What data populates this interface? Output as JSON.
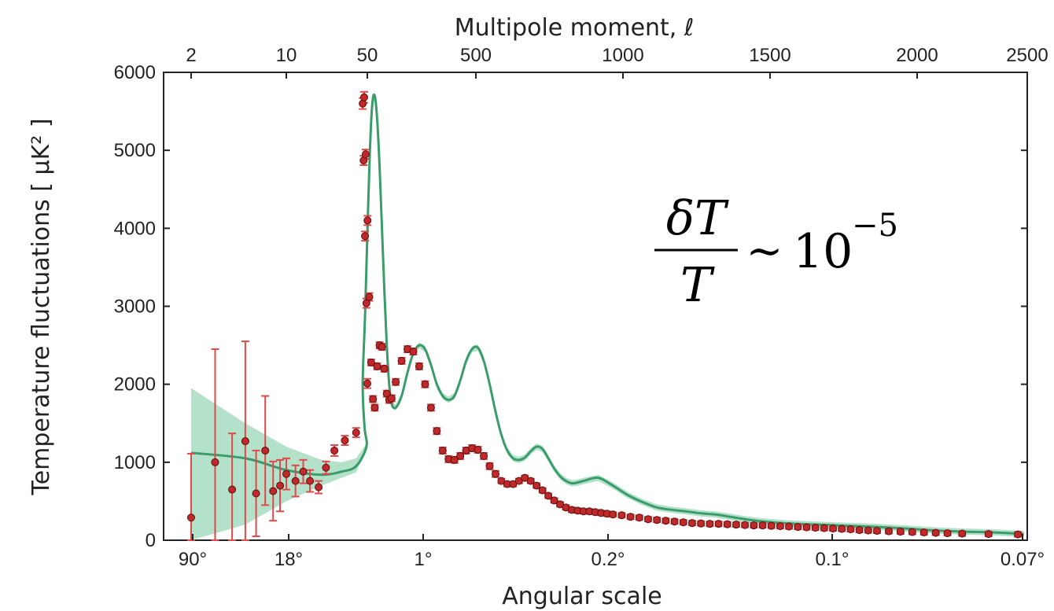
{
  "chart_data": {
    "type": "scatter",
    "title": "",
    "top_axis_label": "Multipole moment, ℓ",
    "top_ticks": [
      "2",
      "10",
      "50",
      "500",
      "1000",
      "1500",
      "2000",
      "2500"
    ],
    "xlabel": "Angular scale",
    "x_ticks": [
      "90°",
      "18°",
      "1°",
      "0.2°",
      "0.1°",
      "0.07°"
    ],
    "ylabel": "Temperature fluctuations [ μK² ]",
    "ylim": [
      0,
      6000
    ],
    "y_ticks": [
      0,
      1000,
      2000,
      3000,
      4000,
      5000,
      6000
    ],
    "grid": false,
    "annotation": {
      "numerator": "δT",
      "denominator": "T",
      "relation": "∼",
      "base": "10",
      "exponent": "−5"
    },
    "model_curve": {
      "color": "#3a9c6a",
      "band_color": "#a6dcc0",
      "multipoles": [
        2,
        5,
        10,
        20,
        30,
        40,
        60,
        80,
        100,
        120,
        140,
        160,
        180,
        200,
        220,
        240,
        260,
        280,
        300,
        320,
        340,
        360,
        380,
        400,
        420,
        440,
        460,
        480,
        500,
        520,
        540,
        560,
        580,
        600,
        620,
        640,
        660,
        680,
        700,
        720,
        740,
        760,
        780,
        800,
        820,
        840,
        860,
        880,
        900,
        920,
        940,
        960,
        980,
        1000,
        1050,
        1100,
        1150,
        1200,
        1250,
        1300,
        1350,
        1400,
        1450,
        1500,
        1550,
        1600,
        1700,
        1800,
        1900,
        2000,
        2100,
        2200,
        2300,
        2400,
        2500
      ],
      "values": [
        1120,
        1050,
        900,
        840,
        880,
        950,
        1200,
        1450,
        2000,
        2900,
        4000,
        5000,
        5600,
        5700,
        5400,
        4800,
        4000,
        3200,
        2500,
        2000,
        1750,
        1700,
        1850,
        2150,
        2400,
        2500,
        2450,
        2250,
        2000,
        1850,
        1800,
        1850,
        2050,
        2300,
        2450,
        2470,
        2300,
        2000,
        1650,
        1350,
        1150,
        1050,
        1030,
        1060,
        1140,
        1200,
        1170,
        1050,
        920,
        820,
        760,
        730,
        740,
        760,
        800,
        700,
        580,
        490,
        420,
        390,
        370,
        345,
        330,
        300,
        270,
        245,
        215,
        200,
        185,
        170,
        150,
        125,
        110,
        100,
        80
      ],
      "band_lower": [
        0,
        200,
        500,
        700,
        800,
        870
      ],
      "band_upper": [
        1950,
        1500,
        1200,
        1030,
        1000,
        1050
      ]
    },
    "series": [
      {
        "name": "",
        "color": "#c0282a",
        "multipoles": [
          2,
          3,
          4,
          5,
          6,
          7,
          8,
          9,
          10,
          12,
          14,
          16,
          19,
          22,
          26,
          32,
          40,
          50,
          60,
          75,
          90,
          100,
          112,
          125,
          140,
          155,
          170,
          185,
          200,
          220,
          240,
          260,
          280,
          300,
          320,
          340,
          360,
          380,
          400,
          420,
          440,
          460,
          480,
          500,
          520,
          540,
          560,
          580,
          600,
          620,
          640,
          660,
          680,
          700,
          720,
          740,
          760,
          780,
          800,
          820,
          840,
          860,
          880,
          900,
          920,
          940,
          960,
          980,
          1000,
          1020,
          1040,
          1060,
          1080,
          1100,
          1130,
          1160,
          1190,
          1220,
          1250,
          1280,
          1310,
          1340,
          1370,
          1400,
          1430,
          1460,
          1490,
          1520,
          1550,
          1580,
          1610,
          1640,
          1670,
          1700,
          1730,
          1760,
          1790,
          1820,
          1850,
          1880,
          1910,
          1940,
          1970,
          2000,
          2040,
          2080,
          2120,
          2160,
          2200,
          2240,
          2290,
          2380,
          2480
        ],
        "values": [
          290,
          1000,
          650,
          1270,
          600,
          1150,
          630,
          700,
          850,
          760,
          880,
          760,
          680,
          930,
          1150,
          1280,
          1380,
          2010,
          3040,
          3900,
          4870,
          5600,
          5680,
          4950,
          4100,
          3120,
          2280,
          1810,
          1700,
          2230,
          2500,
          2480,
          2200,
          1880,
          1800,
          1820,
          2030,
          2300,
          2450,
          2420,
          2230,
          2000,
          1700,
          1400,
          1150,
          1040,
          1030,
          1080,
          1150,
          1180,
          1160,
          1080,
          950,
          850,
          760,
          720,
          720,
          760,
          800,
          760,
          700,
          640,
          570,
          510,
          460,
          420,
          390,
          380,
          370,
          370,
          360,
          350,
          340,
          330,
          320,
          300,
          290,
          270,
          260,
          250,
          240,
          230,
          220,
          215,
          210,
          210,
          205,
          200,
          195,
          190,
          190,
          185,
          180,
          175,
          170,
          165,
          160,
          155,
          150,
          145,
          140,
          130,
          125,
          120,
          115,
          110,
          105,
          100,
          95,
          90,
          85,
          80,
          75
        ],
        "errors": [
          820,
          1450,
          720,
          1280,
          550,
          700,
          380,
          330,
          200,
          200,
          150,
          140,
          80,
          80,
          70,
          60,
          60,
          60,
          60,
          60,
          60,
          70,
          70,
          60,
          60,
          50,
          40,
          40,
          40,
          40,
          40,
          40,
          40,
          40,
          40,
          40,
          40,
          40,
          40,
          40,
          40,
          40,
          40,
          40,
          40,
          40,
          40,
          40,
          40,
          40,
          40,
          40,
          40,
          40,
          30,
          30,
          30,
          30,
          30,
          30,
          30,
          30,
          30,
          30,
          30,
          30,
          30,
          30,
          30,
          30,
          30,
          30,
          30,
          30,
          30,
          30,
          30,
          30,
          30,
          30,
          30,
          30,
          30,
          30,
          30,
          30,
          30,
          30,
          30,
          30,
          30,
          30,
          30,
          30,
          30,
          30,
          30,
          30,
          30,
          30,
          30,
          30,
          30,
          30,
          30,
          30,
          30,
          30,
          30,
          30,
          30,
          30,
          30
        ]
      }
    ]
  }
}
